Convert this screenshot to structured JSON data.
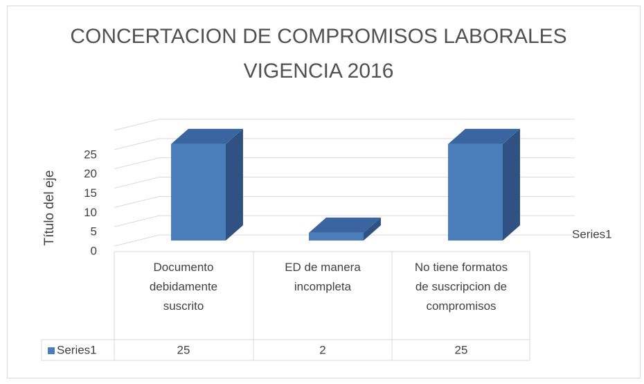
{
  "chart_data": {
    "type": "bar3d",
    "title": "CONCERTACION DE COMPROMISOS LABORALES VIGENCIA 2016",
    "y_axis_label": "Título del eje",
    "categories": [
      "Documento debidamente suscrito",
      "ED de manera incompleta",
      "No tiene formatos de suscripcion de compromisos"
    ],
    "series": [
      {
        "name": "Series1",
        "color": "#4a7ebb",
        "values": [
          25,
          2,
          25
        ]
      }
    ],
    "ylim": [
      0,
      30
    ],
    "yticks": [
      0,
      5,
      10,
      15,
      20,
      25
    ],
    "grid": true,
    "data_table": true
  }
}
